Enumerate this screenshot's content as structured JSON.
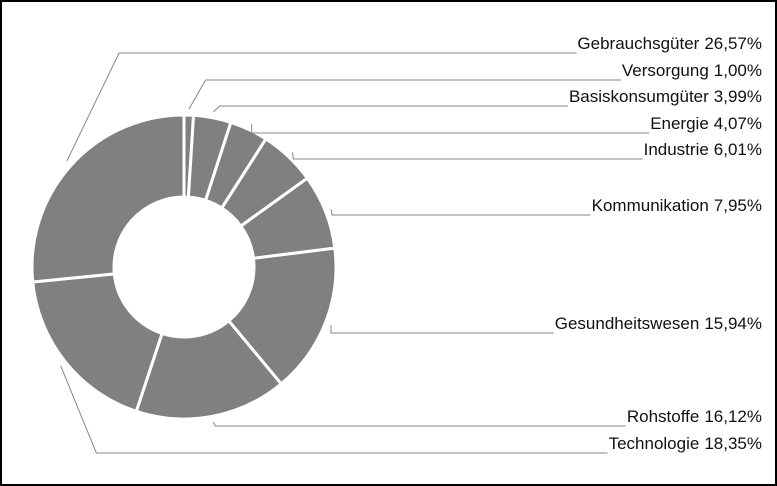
{
  "chart_data": {
    "type": "donut",
    "categories": [
      "Versorgung",
      "Basiskonsumgüter",
      "Energie",
      "Industrie",
      "Kommunikation",
      "Gesundheitswesen",
      "Rohstoffe",
      "Technologie",
      "Gebrauchsgüter"
    ],
    "values": [
      1.0,
      3.99,
      4.07,
      6.01,
      7.95,
      15.94,
      16.12,
      18.35,
      26.57
    ],
    "value_labels": [
      "1,00%",
      "3,99%",
      "4,07%",
      "6,01%",
      "7,95%",
      "15,94%",
      "16,12%",
      "18,35%",
      "26,57%"
    ],
    "color": "#808080"
  }
}
